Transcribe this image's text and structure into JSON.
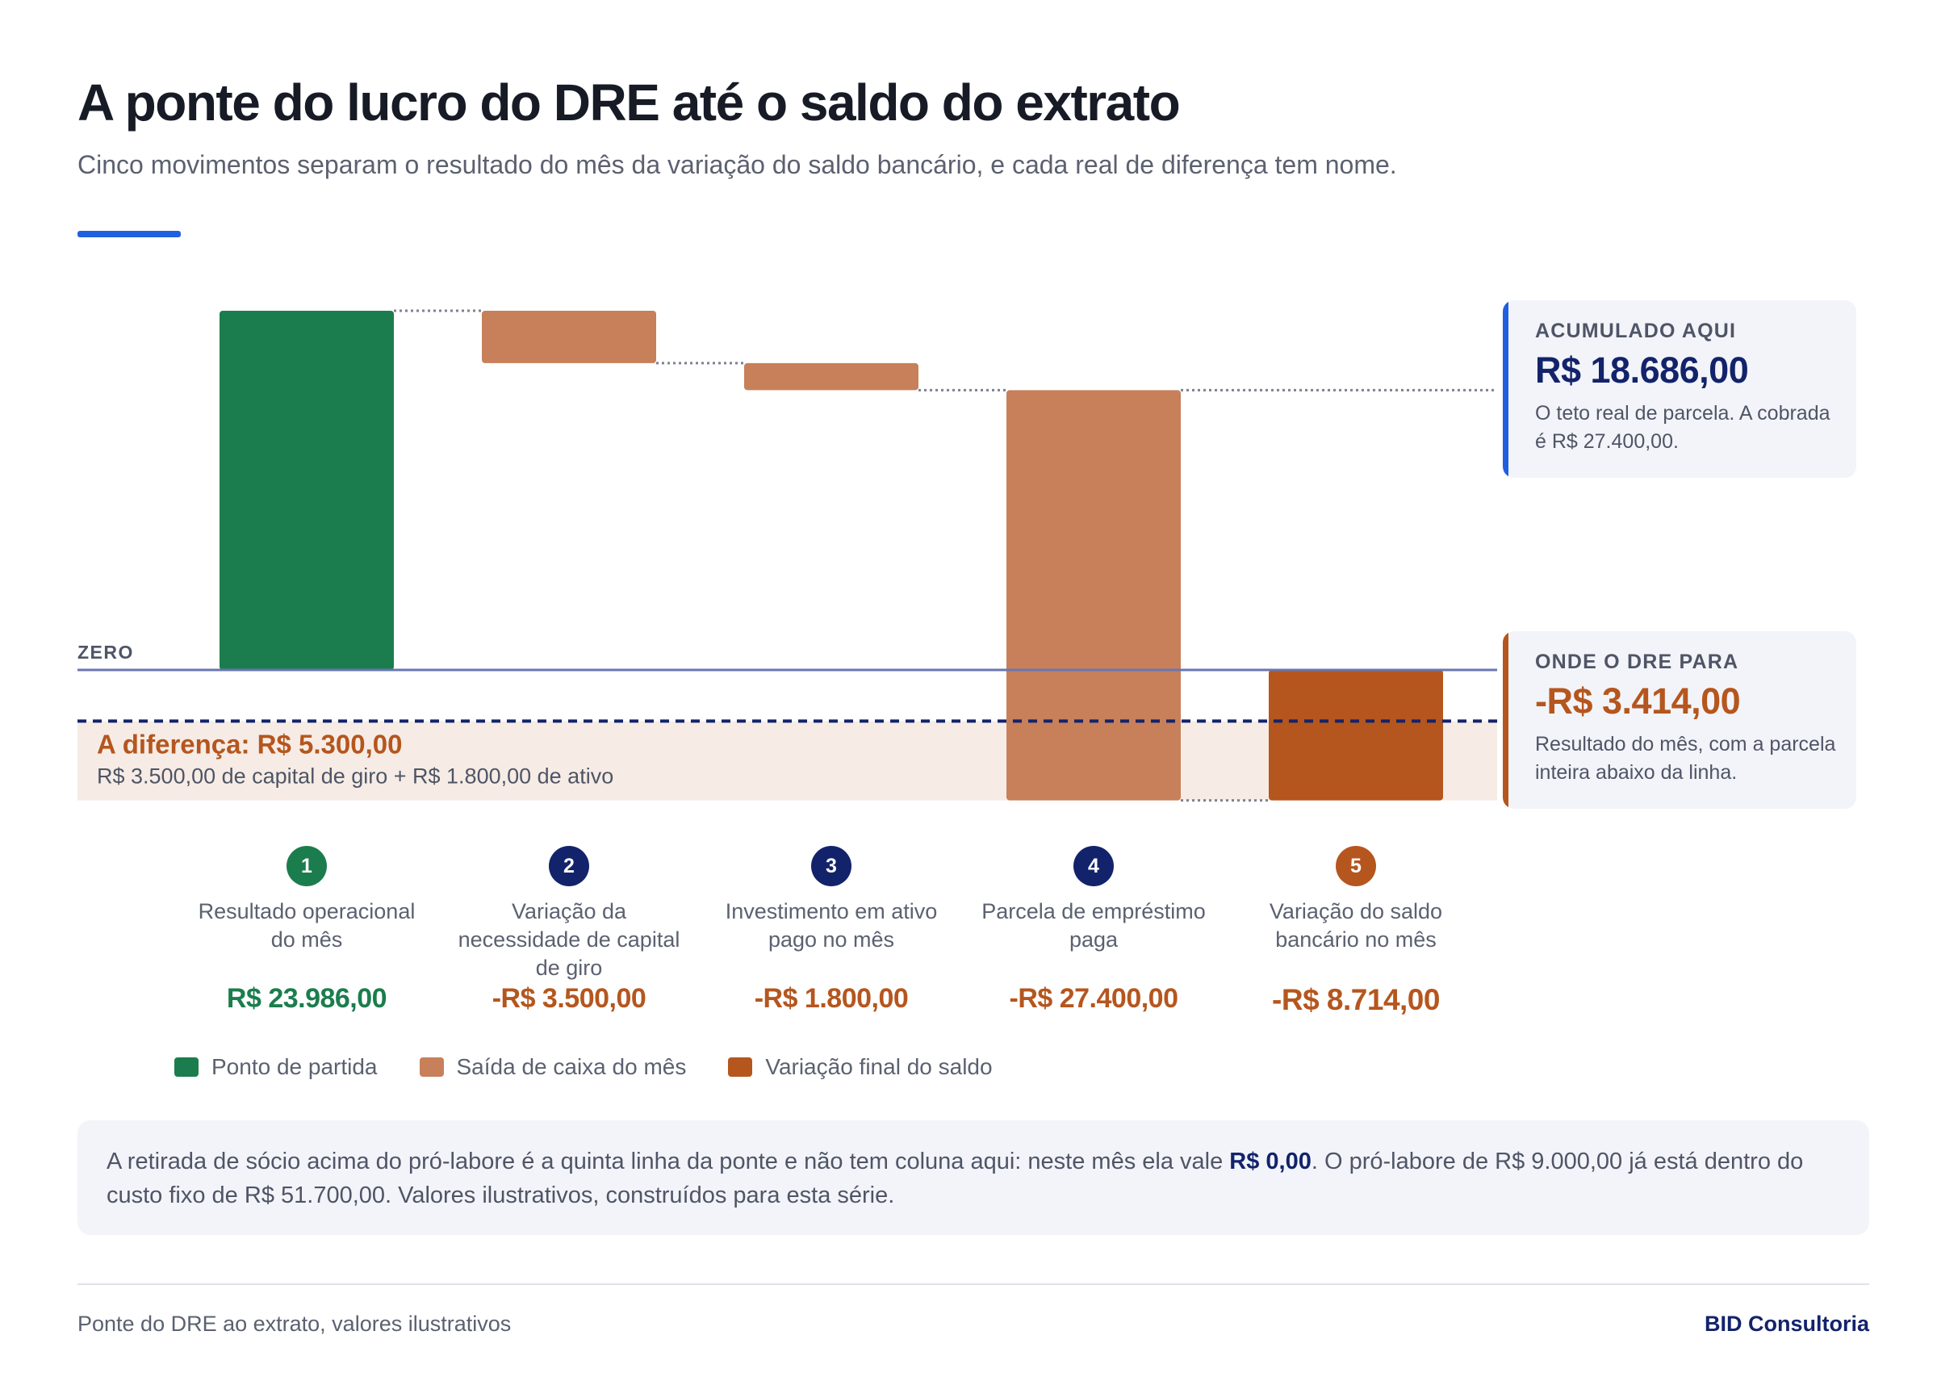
{
  "header": {
    "title": "A ponte do lucro do DRE até o saldo do extrato",
    "subtitle": "Cinco movimentos separam o resultado do mês da variação do saldo bancário, e cada real de diferença tem nome."
  },
  "colors": {
    "start": "#1b7d4d",
    "outflow": "#c7805a",
    "final": "#b5561e",
    "navy": "#13236b",
    "accent": "#1f5fe0",
    "zero_line": "#6a76b0",
    "band": "#f6ece5"
  },
  "chart_data": {
    "type": "waterfall",
    "title": "A ponte do lucro do DRE até o saldo do extrato",
    "unit": "R$",
    "categories": [
      "Resultado operacional do mês",
      "Variação da necessidade de capital de giro",
      "Investimento em ativo pago no mês",
      "Parcela de empréstimo paga",
      "Variação do saldo bancário no mês"
    ],
    "steps": [
      {
        "n": "1",
        "label": "Resultado operacional do mês",
        "delta": 23986,
        "kind": "start",
        "value_label": "R$ 23.986,00"
      },
      {
        "n": "2",
        "label": "Variação da necessidade de capital de giro",
        "delta": -3500,
        "kind": "outflow",
        "value_label": "-R$ 3.500,00"
      },
      {
        "n": "3",
        "label": "Investimento em ativo pago no mês",
        "delta": -1800,
        "kind": "outflow",
        "value_label": "-R$ 1.800,00"
      },
      {
        "n": "4",
        "label": "Parcela de empréstimo paga",
        "delta": -27400,
        "kind": "outflow",
        "value_label": "-R$ 27.400,00"
      },
      {
        "n": "5",
        "label": "Variação do saldo bancário no mês",
        "delta": -8714,
        "kind": "final",
        "value_label": "-R$ 8.714,00"
      }
    ],
    "zero_label": "ZERO",
    "dre_stop_value": -3414,
    "difference": {
      "title": "A diferença: R$ 5.300,00",
      "detail": "R$ 3.500,00 de capital de giro + R$ 1.800,00 de ativo",
      "value": 5300
    },
    "legend": [
      {
        "label": "Ponto de partida",
        "kind": "start"
      },
      {
        "label": "Saída de caixa do mês",
        "kind": "outflow"
      },
      {
        "label": "Variação final do saldo",
        "kind": "final"
      }
    ],
    "ylim": [
      -8714,
      23986
    ]
  },
  "callouts": {
    "accumulated": {
      "kicker": "ACUMULADO AQUI",
      "value": "R$ 18.686,00",
      "note": "O teto real de parcela. A cobrada é R$ 27.400,00."
    },
    "dre_stop": {
      "kicker": "ONDE O DRE PARA",
      "value": "-R$ 3.414,00",
      "note": "Resultado do mês, com a parcela inteira abaixo da linha."
    }
  },
  "footnote": {
    "before": "A retirada de sócio acima do pró-labore é a quinta linha da ponte e não tem coluna aqui: neste mês ela vale ",
    "emphasis": "R$ 0,00",
    "after": ". O pró-labore de R$ 9.000,00 já está dentro do custo fixo de R$ 51.700,00. Valores ilustrativos, construídos para esta série."
  },
  "footer": {
    "source": "Ponte do DRE ao extrato, valores ilustrativos",
    "brand": "BID Consultoria"
  }
}
